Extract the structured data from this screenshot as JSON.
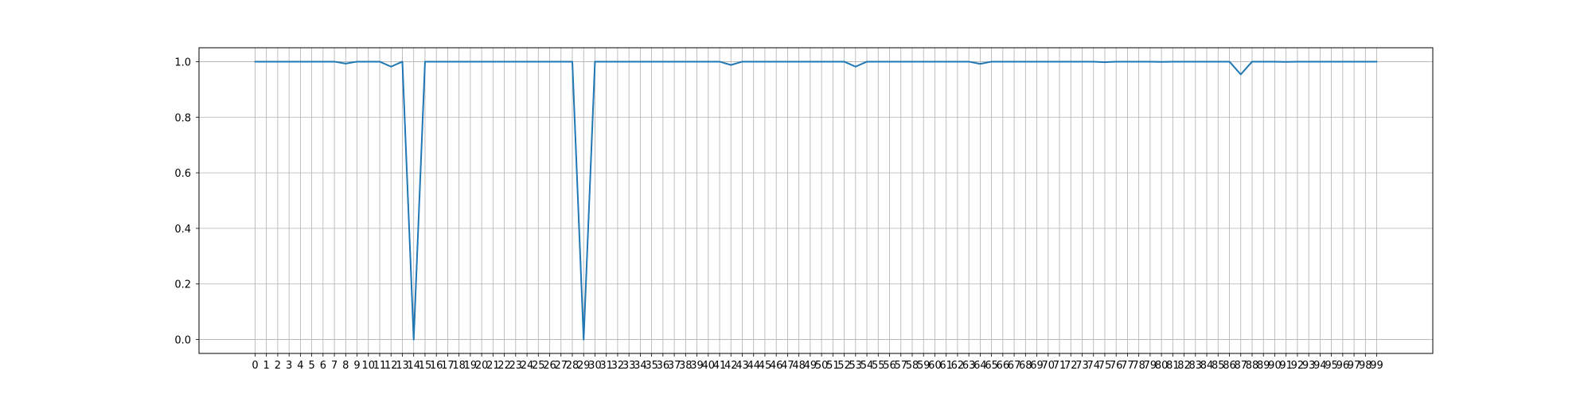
{
  "chart_data": {
    "type": "line",
    "title": "",
    "xlabel": "",
    "ylabel": "",
    "grid": true,
    "x": [
      0,
      1,
      2,
      3,
      4,
      5,
      6,
      7,
      8,
      9,
      10,
      11,
      12,
      13,
      14,
      15,
      16,
      17,
      18,
      19,
      20,
      21,
      22,
      23,
      24,
      25,
      26,
      27,
      28,
      29,
      30,
      31,
      32,
      33,
      34,
      35,
      36,
      37,
      38,
      39,
      40,
      41,
      42,
      43,
      44,
      45,
      46,
      47,
      48,
      49,
      50,
      51,
      52,
      53,
      54,
      55,
      56,
      57,
      58,
      59,
      60,
      61,
      62,
      63,
      64,
      65,
      66,
      67,
      68,
      69,
      70,
      71,
      72,
      73,
      74,
      75,
      76,
      77,
      78,
      79,
      80,
      81,
      82,
      83,
      84,
      85,
      86,
      87,
      88,
      89,
      90,
      91,
      92,
      93,
      94,
      95,
      96,
      97,
      98,
      99
    ],
    "series": [
      {
        "color": "#1f77b4",
        "values": [
          1.0,
          1.0,
          1.0,
          1.0,
          1.0,
          1.0,
          1.0,
          1.0,
          0.993,
          1.0,
          1.0,
          1.0,
          0.982,
          1.0,
          0.0,
          1.0,
          1.0,
          1.0,
          1.0,
          1.0,
          1.0,
          1.0,
          1.0,
          1.0,
          1.0,
          1.0,
          1.0,
          1.0,
          1.0,
          0.0,
          1.0,
          1.0,
          1.0,
          1.0,
          1.0,
          1.0,
          1.0,
          1.0,
          1.0,
          1.0,
          1.0,
          1.0,
          0.988,
          1.0,
          1.0,
          1.0,
          1.0,
          1.0,
          1.0,
          1.0,
          1.0,
          1.0,
          1.0,
          0.982,
          1.0,
          1.0,
          1.0,
          1.0,
          1.0,
          1.0,
          1.0,
          1.0,
          1.0,
          1.0,
          0.992,
          1.0,
          1.0,
          1.0,
          1.0,
          1.0,
          1.0,
          1.0,
          1.0,
          1.0,
          1.0,
          0.998,
          1.0,
          1.0,
          1.0,
          1.0,
          0.999,
          1.0,
          1.0,
          1.0,
          1.0,
          1.0,
          1.0,
          0.954,
          1.0,
          1.0,
          1.0,
          0.999,
          1.0,
          1.0,
          1.0,
          1.0,
          1.0,
          1.0,
          1.0,
          1.0
        ]
      }
    ],
    "xlim": [
      -4.95,
      103.95
    ],
    "ylim": [
      -0.05,
      1.05
    ],
    "yticks": [
      0.0,
      0.2,
      0.4,
      0.6,
      0.8,
      1.0
    ],
    "ytick_labels": [
      "0.0",
      "0.2",
      "0.4",
      "0.6",
      "0.8",
      "1.0"
    ],
    "xtick_labels": [
      "0",
      "1",
      "2",
      "3",
      "4",
      "5",
      "6",
      "7",
      "8",
      "9",
      "10",
      "11",
      "12",
      "13",
      "14",
      "15",
      "16",
      "17",
      "18",
      "19",
      "20",
      "21",
      "22",
      "23",
      "24",
      "25",
      "26",
      "27",
      "28",
      "29",
      "30",
      "31",
      "32",
      "33",
      "34",
      "35",
      "36",
      "37",
      "38",
      "39",
      "40",
      "41",
      "42",
      "43",
      "44",
      "45",
      "46",
      "47",
      "48",
      "49",
      "50",
      "51",
      "52",
      "53",
      "54",
      "55",
      "56",
      "57",
      "58",
      "59",
      "60",
      "61",
      "62",
      "63",
      "64",
      "65",
      "66",
      "67",
      "68",
      "69",
      "70",
      "71",
      "72",
      "73",
      "74",
      "75",
      "76",
      "77",
      "78",
      "79",
      "80",
      "81",
      "82",
      "83",
      "84",
      "85",
      "86",
      "87",
      "88",
      "89",
      "90",
      "91",
      "92",
      "93",
      "94",
      "95",
      "96",
      "97",
      "98",
      "99"
    ]
  }
}
